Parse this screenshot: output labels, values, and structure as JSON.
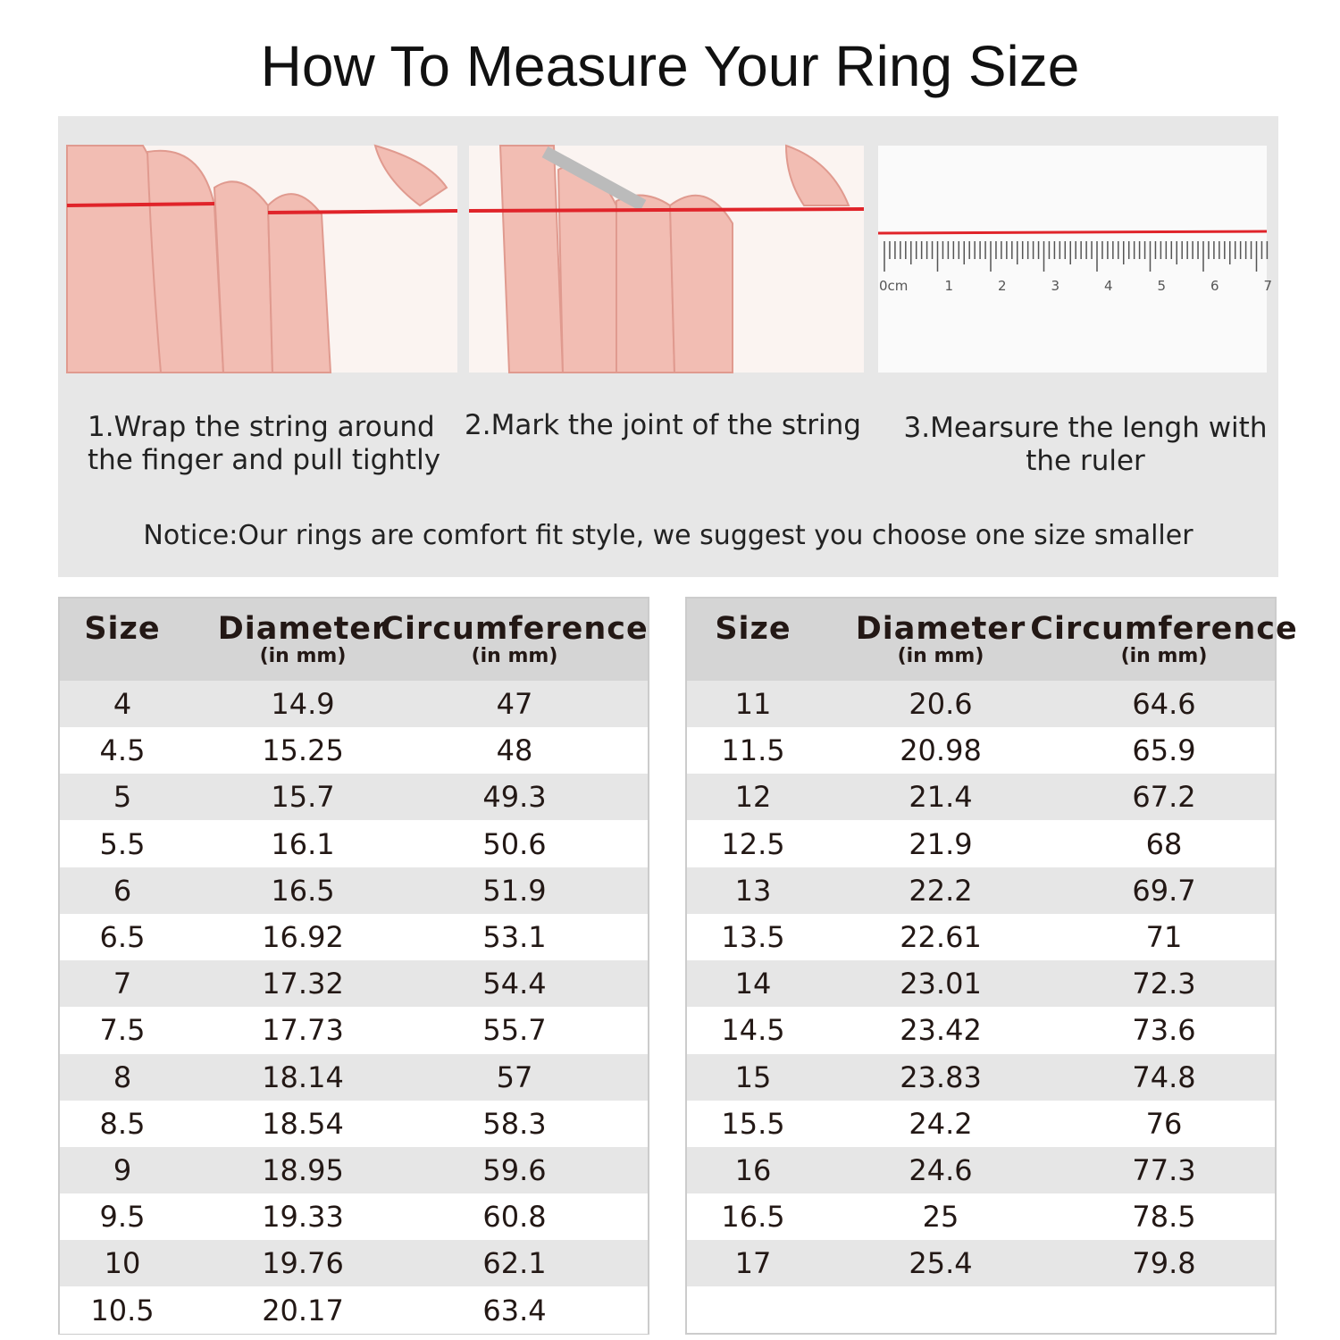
{
  "title": "How To Measure Your Ring Size",
  "steps": [
    {
      "caption": "1.Wrap the string around the finger and pull tightly"
    },
    {
      "caption": "2.Mark the joint of the string"
    },
    {
      "caption": "3.Mearsure the lengh with the ruler"
    }
  ],
  "ruler": {
    "labels": [
      "0cm",
      "1",
      "2",
      "3",
      "4",
      "5",
      "6",
      "7"
    ]
  },
  "notice": "Notice:Our rings are comfort fit style, we suggest you choose one size smaller",
  "tables": [
    {
      "header": [
        {
          "name": "Size"
        },
        {
          "name": "Diameter",
          "unit": "(in mm)"
        },
        {
          "name": "Circumference",
          "unit": "(in mm)"
        }
      ],
      "rows": [
        [
          4,
          14.9,
          47
        ],
        [
          4.5,
          15.25,
          48
        ],
        [
          5,
          15.7,
          49.3
        ],
        [
          5.5,
          16.1,
          50.6
        ],
        [
          6,
          16.5,
          51.9
        ],
        [
          6.5,
          16.92,
          53.1
        ],
        [
          7,
          17.32,
          54.4
        ],
        [
          7.5,
          17.73,
          55.7
        ],
        [
          8,
          18.14,
          57
        ],
        [
          8.5,
          18.54,
          58.3
        ],
        [
          9,
          18.95,
          59.6
        ],
        [
          9.5,
          19.33,
          60.8
        ],
        [
          10,
          19.76,
          62.1
        ],
        [
          10.5,
          20.17,
          63.4
        ]
      ]
    },
    {
      "header": [
        {
          "name": "Size"
        },
        {
          "name": "Diameter",
          "unit": "(in mm)"
        },
        {
          "name": "Circumference",
          "unit": "(in mm)"
        }
      ],
      "rows": [
        [
          11,
          20.6,
          64.6
        ],
        [
          11.5,
          20.98,
          65.9
        ],
        [
          12,
          21.4,
          67.2
        ],
        [
          12.5,
          21.9,
          68
        ],
        [
          13,
          22.2,
          69.7
        ],
        [
          13.5,
          22.61,
          71
        ],
        [
          14,
          23.01,
          72.3
        ],
        [
          14.5,
          23.42,
          73.6
        ],
        [
          15,
          23.83,
          74.8
        ],
        [
          15.5,
          24.2,
          76
        ],
        [
          16,
          24.6,
          77.3
        ],
        [
          16.5,
          25,
          78.5
        ],
        [
          17,
          25.4,
          79.8
        ]
      ]
    }
  ]
}
